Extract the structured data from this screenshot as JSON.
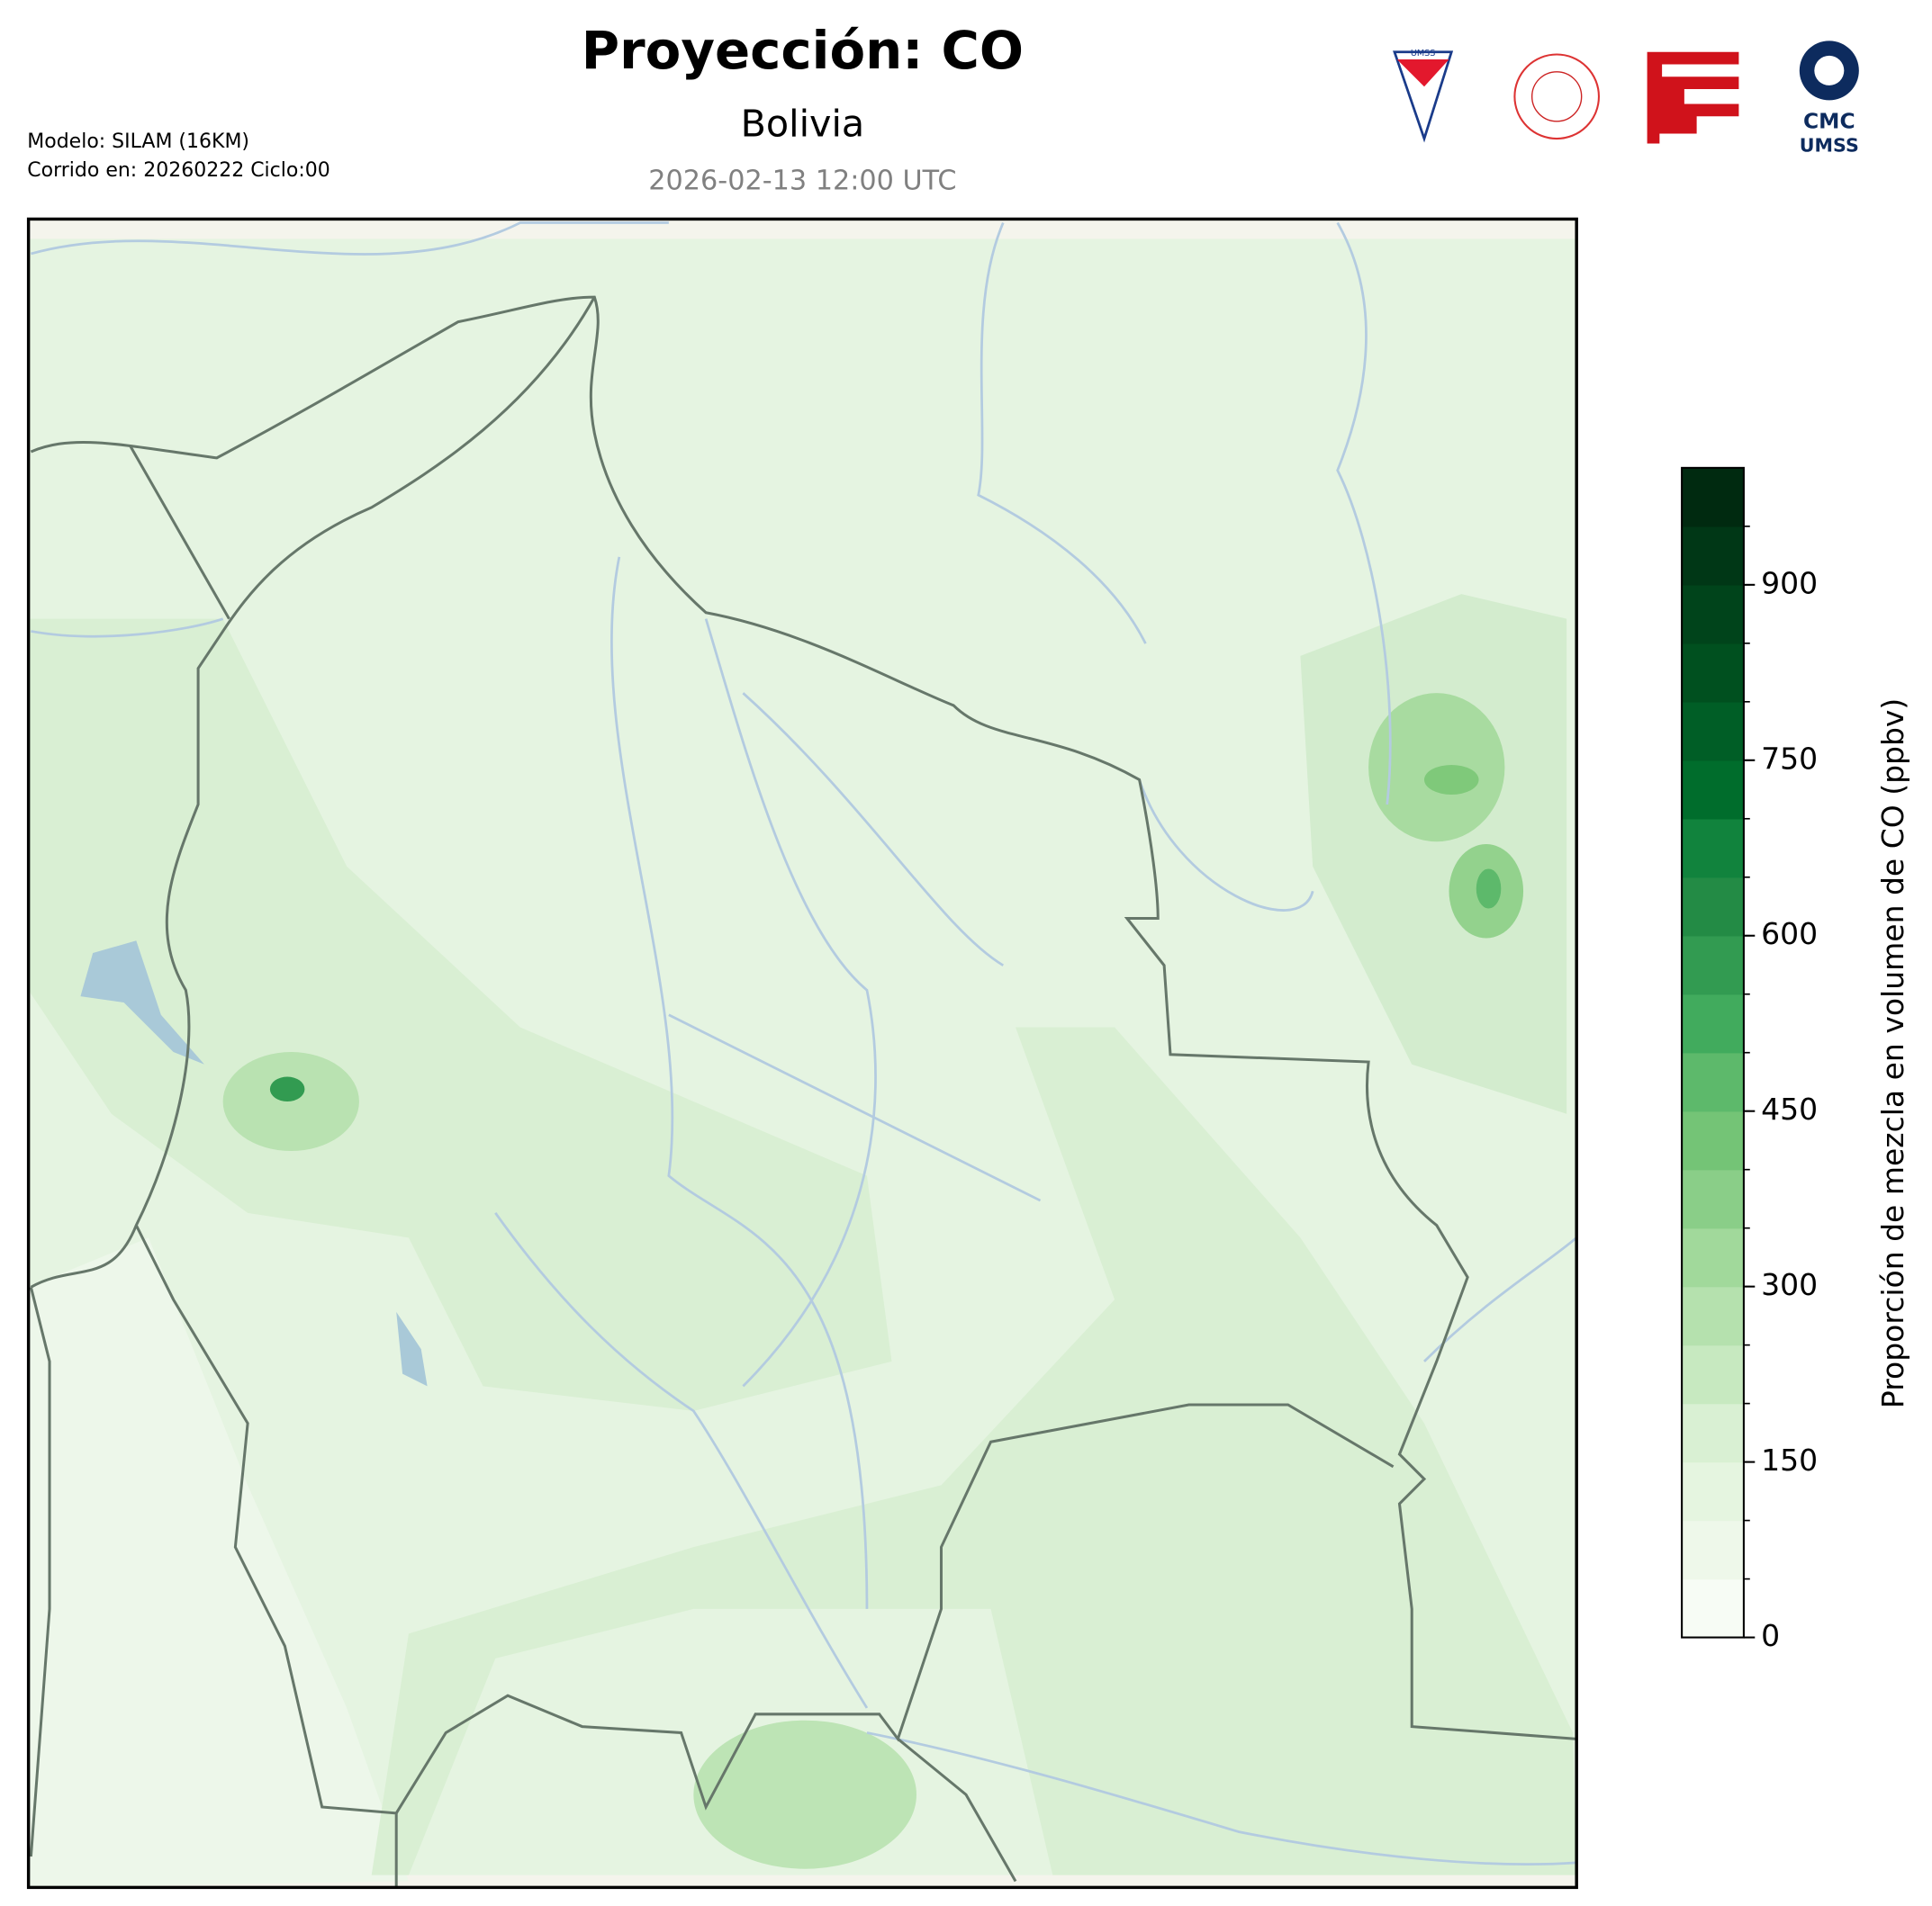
{
  "header": {
    "title": "Proyección: CO",
    "subtitle": "Bolivia",
    "date": "2026-02-13 12:00 UTC",
    "model": "Modelo: SILAM (16KM)",
    "run": "Corrido en: 20260222 Ciclo:00"
  },
  "logos": {
    "cmc": "CMC",
    "umss": "UMSS",
    "umss_small": "UMSS"
  },
  "colorbar": {
    "label": "Proporción de mezcla en volumen de CO (ppbv)",
    "ylim": [
      0,
      1000
    ],
    "yticks": [
      0,
      150,
      300,
      450,
      600,
      750,
      900
    ],
    "colors": [
      "#f7fcf5",
      "#eef8ea",
      "#e5f5e0",
      "#d9f0d3",
      "#c7e9c0",
      "#b5e1ae",
      "#a1d99b",
      "#8ace88",
      "#74c476",
      "#5db96b",
      "#41ab5d",
      "#329b51",
      "#238b45",
      "#11833d",
      "#006d2c",
      "#005e26",
      "#00501f",
      "#00441b",
      "#003716",
      "#002a10"
    ]
  }
}
